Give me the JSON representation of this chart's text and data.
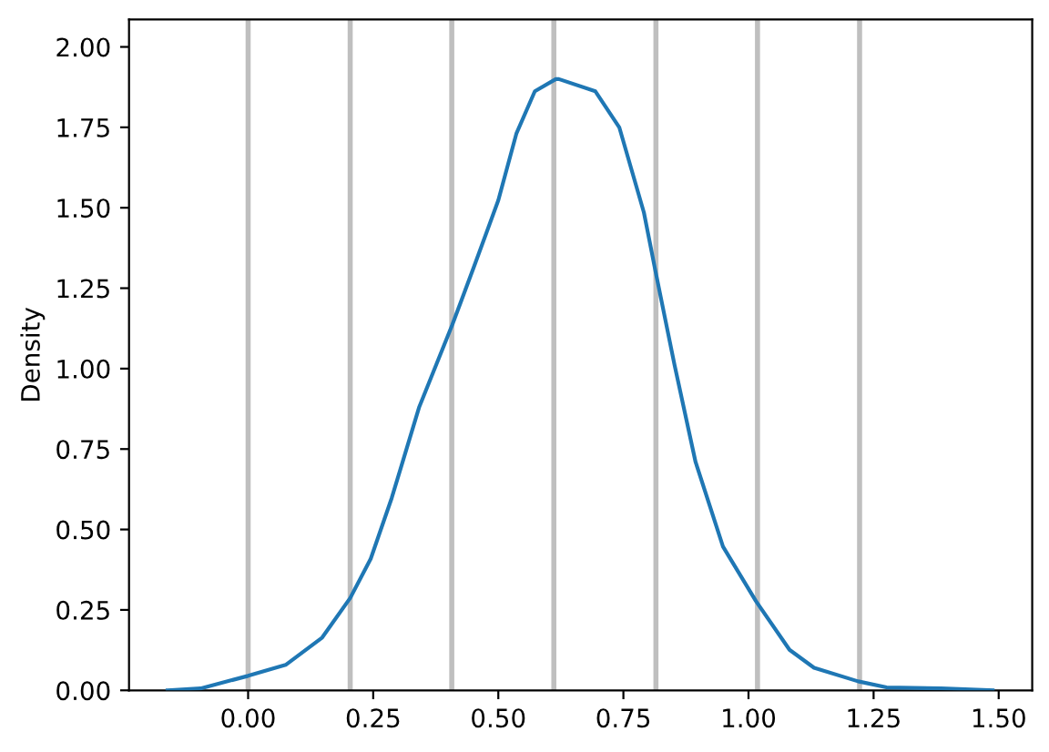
{
  "chart_data": {
    "type": "line",
    "ylabel": "Density",
    "series": [
      {
        "color": "#1f77b4",
        "x": [
          -0.161,
          -0.095,
          0,
          0.075,
          0.148,
          0.204,
          0.245,
          0.287,
          0.342,
          0.408,
          0.451,
          0.5,
          0.536,
          0.573,
          0.615,
          0.621,
          0.694,
          0.742,
          0.791,
          0.815,
          0.852,
          0.894,
          0.949,
          1.015,
          1.082,
          1.131,
          1.219,
          1.276,
          1.385,
          1.488
        ],
        "values": [
          0,
          0.006,
          0.045,
          0.079,
          0.164,
          0.287,
          0.409,
          0.598,
          0.881,
          1.136,
          1.315,
          1.523,
          1.73,
          1.862,
          1.9,
          1.9,
          1.862,
          1.749,
          1.485,
          1.296,
          1.013,
          0.711,
          0.447,
          0.277,
          0.126,
          0.07,
          0.028,
          0.009,
          0.006,
          0
        ]
      }
    ],
    "ref_lines": [
      {
        "axis": "x",
        "value": 0,
        "color": "#bfbfbf"
      },
      {
        "axis": "x",
        "value": 0.204,
        "color": "#bfbfbf"
      },
      {
        "axis": "x",
        "value": 0.407,
        "color": "#bfbfbf"
      },
      {
        "axis": "x",
        "value": 0.611,
        "color": "#bfbfbf"
      },
      {
        "axis": "x",
        "value": 0.815,
        "color": "#bfbfbf"
      },
      {
        "axis": "x",
        "value": 1.018,
        "color": "#bfbfbf"
      },
      {
        "axis": "x",
        "value": 1.222,
        "color": "#bfbfbf"
      }
    ],
    "xlim": [
      -0.238,
      1.567
    ],
    "ylim": [
      0,
      2.085
    ],
    "xticks": [
      {
        "value": 0,
        "label": "0.00"
      },
      {
        "value": 0.25,
        "label": "0.25"
      },
      {
        "value": 0.5,
        "label": "0.50"
      },
      {
        "value": 0.75,
        "label": "0.75"
      },
      {
        "value": 1,
        "label": "1.00"
      },
      {
        "value": 1.25,
        "label": "1.25"
      },
      {
        "value": 1.5,
        "label": "1.50"
      }
    ],
    "yticks": [
      {
        "value": 0,
        "label": "0.00"
      },
      {
        "value": 0.25,
        "label": "0.25"
      },
      {
        "value": 0.5,
        "label": "0.50"
      },
      {
        "value": 0.75,
        "label": "0.75"
      },
      {
        "value": 1,
        "label": "1.00"
      },
      {
        "value": 1.25,
        "label": "1.25"
      },
      {
        "value": 1.5,
        "label": "1.50"
      },
      {
        "value": 1.75,
        "label": "1.75"
      },
      {
        "value": 2,
        "label": "2.00"
      }
    ],
    "grid": false,
    "marker": "none",
    "line_style": "solid"
  }
}
